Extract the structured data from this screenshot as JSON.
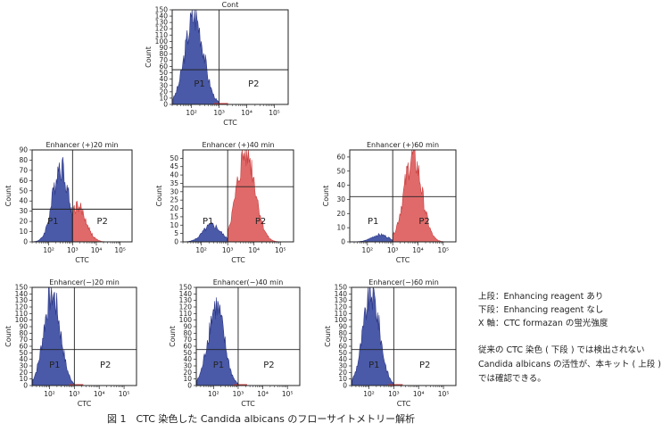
{
  "chart_data": [
    {
      "type": "histogram",
      "title": "Cont",
      "xlabel": "CTC",
      "ylabel": "Count",
      "xscale": "log",
      "xlim_log10": [
        1.3,
        5.5
      ],
      "ylim": [
        0,
        150
      ],
      "yticks": [
        0,
        10,
        20,
        30,
        40,
        50,
        60,
        70,
        80,
        90,
        100,
        110,
        120,
        130,
        140,
        150
      ],
      "xtick_labels": [
        "10²",
        "10³",
        "10⁴",
        "10⁵"
      ],
      "gate_x_log10": 3.0,
      "gate_y": 55,
      "gates": [
        "P1",
        "P2"
      ],
      "peak_log10": 2.1,
      "peak_count": 140,
      "p2_population": false
    },
    {
      "type": "histogram",
      "title": "Enhancer (+)20 min",
      "xlabel": "CTC",
      "ylabel": "Count",
      "xscale": "log",
      "xlim_log10": [
        1.3,
        5.5
      ],
      "ylim": [
        0,
        90
      ],
      "yticks": [
        0,
        10,
        20,
        30,
        40,
        50,
        60,
        70,
        80,
        90
      ],
      "xtick_labels": [
        "10²",
        "10³",
        "10⁴",
        "10⁵"
      ],
      "gate_x_log10": 3.0,
      "gate_y": 32,
      "gates": [
        "P1",
        "P2"
      ],
      "peak_log10": 2.5,
      "peak_count": 75,
      "p2_population": true,
      "p2_peak_log10": 3.2,
      "p2_peak_count": 35
    },
    {
      "type": "histogram",
      "title": "Enhancer (+)40 min",
      "xlabel": "CTC",
      "ylabel": "Count",
      "xscale": "log",
      "xlim_log10": [
        1.3,
        5.5
      ],
      "ylim": [
        0,
        55
      ],
      "yticks": [
        0,
        5,
        10,
        15,
        20,
        25,
        30,
        35,
        40,
        45,
        50
      ],
      "xtick_labels": [
        "10²",
        "10³",
        "10⁴",
        "10⁵"
      ],
      "gate_x_log10": 3.0,
      "gate_y": 33,
      "gates": [
        "P1",
        "P2"
      ],
      "peak_log10": 2.4,
      "peak_count": 10,
      "p2_population": true,
      "p2_peak_log10": 3.7,
      "p2_peak_count": 54
    },
    {
      "type": "histogram",
      "title": "Enhancer (+)60 min",
      "xlabel": "CTC",
      "ylabel": "Count",
      "xscale": "log",
      "xlim_log10": [
        1.3,
        5.5
      ],
      "ylim": [
        0,
        65
      ],
      "yticks": [
        0,
        10,
        20,
        30,
        40,
        50,
        60
      ],
      "xtick_labels": [
        "10²",
        "10³",
        "10⁴",
        "10⁵"
      ],
      "gate_x_log10": 3.0,
      "gate_y": 32,
      "gates": [
        "P1",
        "P2"
      ],
      "peak_log10": 2.5,
      "peak_count": 5,
      "p2_population": true,
      "p2_peak_log10": 3.8,
      "p2_peak_count": 60
    },
    {
      "type": "histogram",
      "title": "Enhancer(−)20 min",
      "xlabel": "CTC",
      "ylabel": "Count",
      "xscale": "log",
      "xlim_log10": [
        1.3,
        5.5
      ],
      "ylim": [
        0,
        150
      ],
      "yticks": [
        0,
        10,
        20,
        30,
        40,
        50,
        60,
        70,
        80,
        90,
        100,
        110,
        120,
        130,
        140,
        150
      ],
      "xtick_labels": [
        "10²",
        "10³",
        "10⁴",
        "10⁵"
      ],
      "gate_x_log10": 3.0,
      "gate_y": 55,
      "gates": [
        "P1",
        "P2"
      ],
      "peak_log10": 2.1,
      "peak_count": 140,
      "p2_population": false
    },
    {
      "type": "histogram",
      "title": "Enhancer(−)40 min",
      "xlabel": "CTC",
      "ylabel": "Count",
      "xscale": "log",
      "xlim_log10": [
        1.3,
        5.5
      ],
      "ylim": [
        0,
        150
      ],
      "yticks": [
        0,
        10,
        20,
        30,
        40,
        50,
        60,
        70,
        80,
        90,
        100,
        110,
        120,
        130,
        140,
        150
      ],
      "xtick_labels": [
        "10²",
        "10³",
        "10⁴",
        "10⁵"
      ],
      "gate_x_log10": 3.0,
      "gate_y": 55,
      "gates": [
        "P1",
        "P2"
      ],
      "peak_log10": 2.1,
      "peak_count": 120,
      "p2_population": false
    },
    {
      "type": "histogram",
      "title": "Enhancer(−)60 min",
      "xlabel": "CTC",
      "ylabel": "Count",
      "xscale": "log",
      "xlim_log10": [
        1.3,
        5.5
      ],
      "ylim": [
        0,
        150
      ],
      "yticks": [
        0,
        10,
        20,
        30,
        40,
        50,
        60,
        70,
        80,
        90,
        100,
        110,
        120,
        130,
        140,
        150
      ],
      "xtick_labels": [
        "10²",
        "10³",
        "10⁴",
        "10⁵"
      ],
      "gate_x_log10": 3.0,
      "gate_y": 55,
      "gates": [
        "P1",
        "P2"
      ],
      "peak_log10": 2.1,
      "peak_count": 140,
      "p2_population": false
    }
  ],
  "colors": {
    "p1_fill": "#4a5aa8",
    "p1_line": "#2b3585",
    "p2_fill": "#e06a6a",
    "p2_line": "#c83c3c",
    "axis": "#222222"
  },
  "legend_lines": [
    "上段：Enhancing reagent あり",
    "下段：Enhancing reagent なし",
    "X 軸：CTC formazan の蛍光強度"
  ],
  "note_lines": [
    "従来の CTC 染色 ( 下段 ) では検出されない",
    "Candida albicans の活性が、本キット ( 上段 )",
    "では確認できる。"
  ],
  "figure_title": "図 1　CTC 染色した Candida albicans のフローサイトメトリー解析"
}
